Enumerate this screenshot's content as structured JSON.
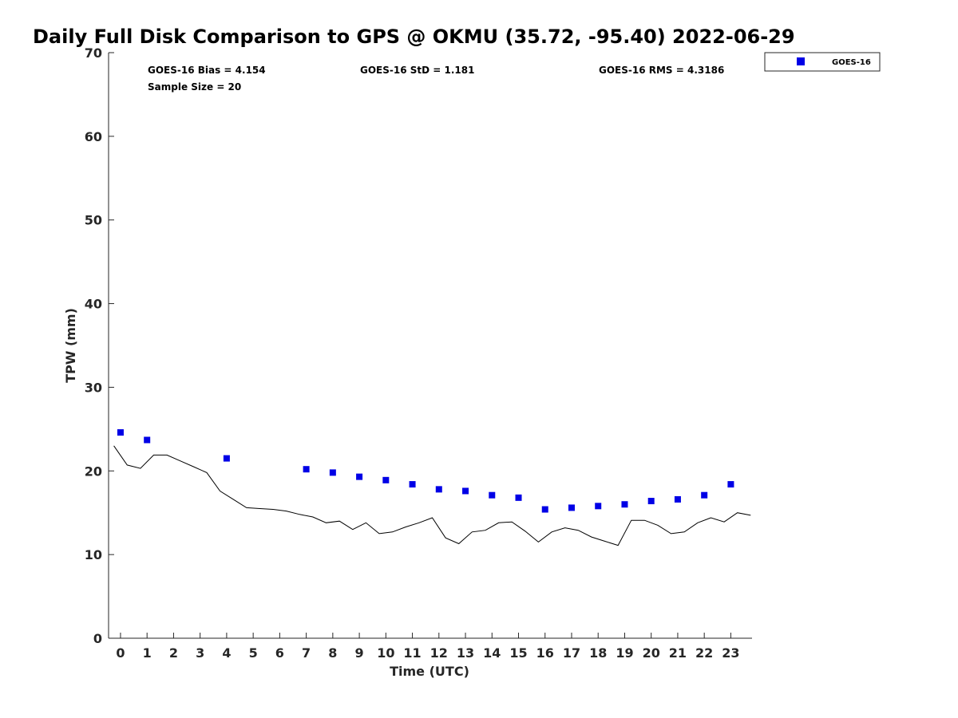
{
  "chart_data": {
    "type": "scatter",
    "title": "Daily Full Disk Comparison to GPS @ OKMU (35.72, -95.40) 2022-06-29",
    "xlabel": "Time (UTC)",
    "ylabel": "TPW (mm)",
    "xlim": [
      -0.45,
      23.8
    ],
    "ylim": [
      0,
      70
    ],
    "x_ticks": [
      0,
      1,
      2,
      3,
      4,
      5,
      6,
      7,
      8,
      9,
      10,
      11,
      12,
      13,
      14,
      15,
      16,
      17,
      18,
      19,
      20,
      21,
      22,
      23
    ],
    "y_ticks": [
      0,
      10,
      20,
      30,
      40,
      50,
      60,
      70
    ],
    "grid": false,
    "legend_position": "top-right, outside plot",
    "stats": {
      "bias": "GOES-16 Bias = 4.154",
      "std": "GOES-16 StD = 1.181",
      "rms": "GOES-16 RMS = 4.3186",
      "sample_size": "Sample Size = 20"
    },
    "series": [
      {
        "name": "GOES-16",
        "kind": "marker",
        "color": "#0000e6",
        "x": [
          0,
          1,
          4,
          7,
          8,
          9,
          10,
          11,
          12,
          13,
          14,
          15,
          16,
          17,
          18,
          19,
          20,
          21,
          22,
          23
        ],
        "y": [
          24.6,
          23.7,
          21.5,
          20.2,
          19.8,
          19.3,
          18.9,
          18.4,
          17.8,
          17.6,
          17.1,
          16.8,
          15.4,
          15.6,
          15.8,
          16.0,
          16.4,
          16.6,
          17.1,
          18.4
        ]
      },
      {
        "kind": "line",
        "color": "#000000",
        "x": [
          -0.25,
          0.25,
          0.75,
          1.25,
          1.75,
          2.25,
          2.75,
          3.25,
          3.75,
          4.25,
          4.75,
          5.25,
          5.75,
          6.25,
          6.75,
          7.25,
          7.75,
          8.25,
          8.75,
          9.25,
          9.75,
          10.25,
          10.75,
          11.25,
          11.75,
          12.25,
          12.75,
          13.25,
          13.75,
          14.25,
          14.75,
          15.25,
          15.75,
          16.25,
          16.75,
          17.25,
          17.75,
          18.25,
          18.75,
          19.25,
          19.75,
          20.25,
          20.75,
          21.25,
          21.75,
          22.25,
          22.75,
          23.25,
          23.75
        ],
        "y": [
          23.0,
          20.7,
          20.3,
          21.9,
          21.9,
          21.2,
          20.5,
          19.8,
          17.6,
          16.6,
          15.6,
          15.5,
          15.4,
          15.2,
          14.8,
          14.5,
          13.8,
          14.0,
          13.0,
          13.8,
          12.5,
          12.7,
          13.3,
          13.8,
          14.4,
          12.0,
          11.3,
          12.7,
          12.9,
          13.8,
          13.9,
          12.8,
          11.5,
          12.7,
          13.2,
          12.9,
          12.1,
          11.6,
          11.1,
          14.1,
          14.1,
          13.5,
          12.5,
          12.7,
          13.8,
          14.4,
          13.9,
          15.0,
          14.7
        ]
      }
    ]
  }
}
